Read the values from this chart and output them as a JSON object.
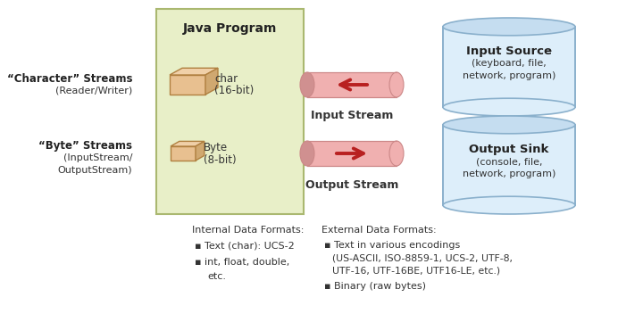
{
  "bg_color": "#ffffff",
  "java_title": "Java Program",
  "char_streams_label1": "“Character” Streams",
  "char_streams_label2": "(Reader/Writer)",
  "byte_streams_label1": "“Byte” Streams",
  "byte_streams_label2": "(InputStream/",
  "byte_streams_label3": "OutputStream)",
  "char_label": "char\n(16-bit)",
  "byte_label": "Byte\n(8-bit)",
  "input_stream_label": "Input Stream",
  "output_stream_label": "Output Stream",
  "input_source_title": "Input Source",
  "input_source_sub": "(keyboard, file,\nnetwork, program)",
  "output_sink_title": "Output Sink",
  "output_sink_sub": "(console, file,\nnetwork, program)",
  "internal_title": "Internal Data Formats:",
  "internal_bullets": [
    "Text (char): UCS-2",
    "int, float, double,\n    etc."
  ],
  "external_title": "External Data Formats:",
  "external_bullets": [
    "Text in various encodings\n(US-ASCII, ISO-8859-1, UCS-2, UTF-8,\nUTF-16, UTF-16BE, UTF16-LE, etc.)",
    "Binary (raw bytes)"
  ],
  "java_box_color": "#e8efc8",
  "java_box_edge": "#aab870",
  "cylinder_body": "#ddeefa",
  "cylinder_top": "#c5ddf0",
  "cylinder_edge": "#8ab0cc",
  "pipe_fill": "#f0b0b0",
  "pipe_edge": "#cc8888",
  "pipe_end_fill": "#d09090",
  "arrow_color": "#b82020",
  "box_front": "#e8c090",
  "box_top": "#f0d0a8",
  "box_right": "#d0a870",
  "box_edge": "#b08040"
}
